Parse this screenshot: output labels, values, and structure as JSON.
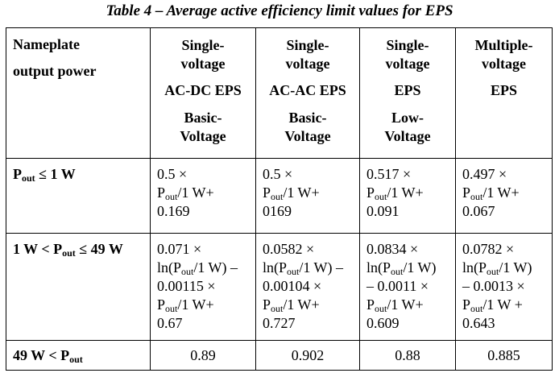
{
  "caption": "Table 4 – Average active efficiency limit values for EPS",
  "headers": [
    {
      "lines": [
        "Nameplate",
        "output power"
      ]
    },
    {
      "lines": [
        "Single-",
        "voltage",
        "AC-DC EPS"
      ],
      "sub": [
        "Basic-",
        "Voltage"
      ]
    },
    {
      "lines": [
        "Single-",
        "voltage",
        "AC-AC EPS"
      ],
      "sub": [
        "Basic-",
        "Voltage"
      ]
    },
    {
      "lines": [
        "Single-",
        "voltage",
        "EPS"
      ],
      "sub": [
        "Low-",
        "Voltage"
      ]
    },
    {
      "lines": [
        "Multiple-",
        "voltage",
        "EPS"
      ]
    }
  ],
  "rows": [
    {
      "label_parts": [
        "P",
        "out",
        " ≤ 1 W"
      ],
      "cells": [
        [
          "0.5 ×",
          "Pout/1 W+",
          "0.169"
        ],
        [
          "0.5 ×",
          "Pout/1 W+",
          "0169"
        ],
        [
          "0.517 ×",
          "Pout/1 W+",
          "0.091"
        ],
        [
          "0.497 ×",
          "Pout/1 W+",
          "0.067"
        ]
      ]
    },
    {
      "label_parts": [
        "1 W < P",
        "out",
        " ≤ 49 W"
      ],
      "cells": [
        [
          "0.071 ×",
          "ln(Pout/1 W) –",
          "0.00115 ×",
          "Pout/1 W+",
          "0.67"
        ],
        [
          "0.0582 ×",
          "ln(Pout/1 W) –",
          "0.00104 ×",
          "Pout/1 W+",
          "0.727"
        ],
        [
          "0.0834 ×",
          "ln(Pout/1 W)",
          "– 0.0011 ×",
          "Pout/1 W+",
          "0.609"
        ],
        [
          "0.0782 ×",
          "ln(Pout/1 W)",
          "– 0.0013 ×",
          "Pout/1 W +",
          "0.643"
        ]
      ]
    },
    {
      "label_parts": [
        "49 W < P",
        "out",
        ""
      ],
      "cells": [
        "0.89",
        "0.902",
        "0.88",
        "0.885"
      ]
    }
  ]
}
